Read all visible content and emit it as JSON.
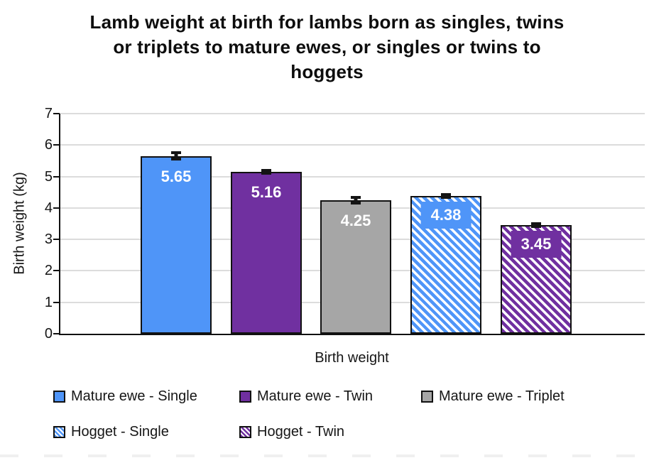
{
  "title": {
    "lines": [
      "Lamb weight at birth for lambs born as singles, twins",
      "or triplets to mature ewes, or singles or twins to",
      "hoggets"
    ]
  },
  "chart_data": {
    "type": "bar",
    "title": "Lamb weight at birth for lambs born as singles, twins or triplets to mature ewes, or singles or twins to hoggets",
    "xlabel": "Birth weight",
    "ylabel": "Birth weight (kg)",
    "ylim": [
      0,
      7
    ],
    "ytick_interval": 1,
    "grid": true,
    "legend_position": "bottom",
    "categories": [
      "Birth weight"
    ],
    "series": [
      {
        "name": "Mature ewe - Single",
        "value": 5.65,
        "error": 0.15,
        "fill": "solid",
        "color": "#4f95f8"
      },
      {
        "name": "Mature ewe - Twin",
        "value": 5.16,
        "error": 0.06,
        "fill": "solid",
        "color": "#7030a0"
      },
      {
        "name": "Mature ewe - Triplet",
        "value": 4.25,
        "error": 0.13,
        "fill": "solid",
        "color": "#a6a6a6"
      },
      {
        "name": "Hogget - Single",
        "value": 4.38,
        "error": 0.06,
        "fill": "hatched",
        "color": "#4f95f8"
      },
      {
        "name": "Hogget - Twin",
        "value": 3.45,
        "error": 0.09,
        "fill": "hatched",
        "color": "#7030a0"
      }
    ],
    "data_labels": [
      "5.65",
      "5.16",
      "4.25",
      "4.38",
      "3.45"
    ]
  },
  "axes": {
    "y_label": "Birth weight (kg)",
    "x_label": "Birth weight",
    "y_ticks": [
      "7",
      "6",
      "5",
      "4",
      "3",
      "2",
      "1",
      "0"
    ]
  },
  "colors": {
    "blue": "#4f95f8",
    "purple": "#7030a0",
    "gray": "#a6a6a6",
    "error_bar": "#141414",
    "gridline": "#dcdcdc",
    "axis": "#111111",
    "label_text": "#ffffff"
  }
}
